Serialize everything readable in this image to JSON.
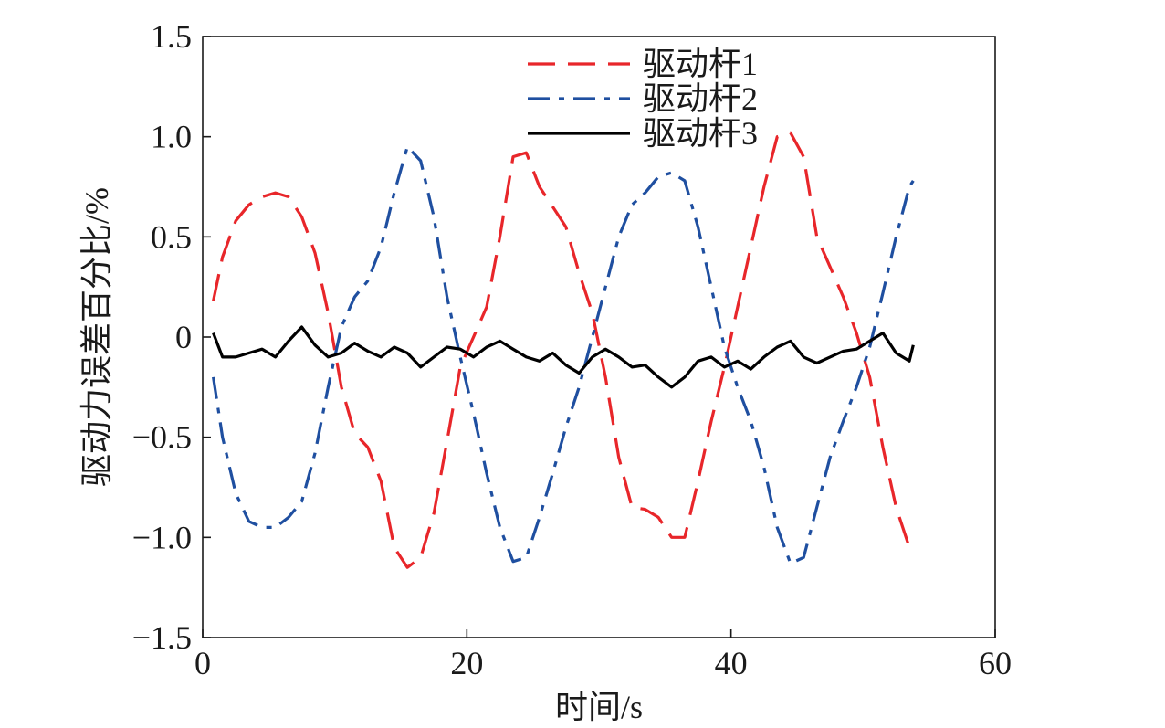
{
  "chart_data": {
    "type": "line",
    "title": "",
    "xlabel": "时间/s",
    "ylabel": "驱动力误差百分比/%",
    "xlim": [
      0,
      60
    ],
    "ylim": [
      -1.5,
      1.5
    ],
    "x_ticks": [
      0,
      20,
      40,
      60
    ],
    "x_tick_labels": [
      "0",
      "20",
      "40",
      "60"
    ],
    "y_ticks": [
      -1.5,
      -1.0,
      -0.5,
      0,
      0.5,
      1.0,
      1.5
    ],
    "y_tick_labels": [
      "−1.5",
      "−1.0",
      "−0.5",
      "0",
      "0.5",
      "1.0",
      "1.5"
    ],
    "grid": false,
    "legend_position": "top-center",
    "series": [
      {
        "name": "驱动杆1",
        "color": "#e8262a",
        "dash": "dashed",
        "x": [
          0.8,
          1.5,
          2.5,
          3.5,
          4.5,
          5.5,
          6.5,
          7.5,
          8.5,
          9.5,
          10.5,
          11.5,
          12.5,
          13.5,
          14.5,
          15.5,
          16.5,
          17.5,
          18.5,
          19.5,
          20.5,
          21.5,
          22.5,
          23.5,
          24.5,
          25.5,
          26.5,
          27.5,
          28.5,
          29.5,
          30.5,
          31.5,
          32.5,
          33.5,
          34.5,
          35.5,
          36.5,
          37.5,
          38.5,
          39.5,
          40.5,
          41.5,
          42.5,
          43.5,
          44.5,
          45.5,
          46.5,
          47.5,
          48.5,
          49.5,
          50.5,
          51.5,
          52.5,
          53.5,
          53.8
        ],
        "y": [
          0.18,
          0.4,
          0.58,
          0.66,
          0.7,
          0.72,
          0.7,
          0.6,
          0.42,
          0.12,
          -0.25,
          -0.48,
          -0.55,
          -0.72,
          -1.05,
          -1.15,
          -1.1,
          -0.88,
          -0.52,
          -0.15,
          0.0,
          0.15,
          0.5,
          0.9,
          0.92,
          0.75,
          0.65,
          0.55,
          0.32,
          0.12,
          -0.2,
          -0.6,
          -0.85,
          -0.86,
          -0.9,
          -1.0,
          -1.0,
          -0.72,
          -0.42,
          -0.15,
          0.15,
          0.45,
          0.75,
          1.0,
          1.02,
          0.9,
          0.5,
          0.35,
          0.2,
          0.02,
          -0.2,
          -0.55,
          -0.85,
          -1.05,
          -1.08
        ]
      },
      {
        "name": "驱动杆2",
        "color": "#1f4fa0",
        "dash": "dashdot",
        "x": [
          0.8,
          1.5,
          2.5,
          3.5,
          4.5,
          5.5,
          6.5,
          7.5,
          8.5,
          9.5,
          10.5,
          11.5,
          12.5,
          13.5,
          14.5,
          15.5,
          16.5,
          17.5,
          18.5,
          19.5,
          20.5,
          21.5,
          22.5,
          23.5,
          24.5,
          25.5,
          26.5,
          27.5,
          28.5,
          29.5,
          30.5,
          31.5,
          32.5,
          33.5,
          34.5,
          35.5,
          36.5,
          37.5,
          38.5,
          39.5,
          40.5,
          41.5,
          42.5,
          43.5,
          44.5,
          45.5,
          46.5,
          47.5,
          48.5,
          49.5,
          50.5,
          51.5,
          52.5,
          53.5,
          53.8
        ],
        "y": [
          -0.2,
          -0.5,
          -0.78,
          -0.92,
          -0.95,
          -0.95,
          -0.9,
          -0.82,
          -0.58,
          -0.25,
          0.05,
          0.2,
          0.28,
          0.45,
          0.72,
          0.95,
          0.88,
          0.6,
          0.2,
          -0.1,
          -0.38,
          -0.68,
          -0.95,
          -1.12,
          -1.1,
          -0.9,
          -0.68,
          -0.45,
          -0.25,
          0.0,
          0.25,
          0.5,
          0.66,
          0.72,
          0.8,
          0.82,
          0.78,
          0.55,
          0.25,
          -0.05,
          -0.25,
          -0.42,
          -0.65,
          -0.95,
          -1.13,
          -1.1,
          -0.85,
          -0.6,
          -0.42,
          -0.25,
          -0.05,
          0.22,
          0.5,
          0.75,
          0.78
        ]
      },
      {
        "name": "驱动杆3",
        "color": "#000000",
        "dash": "solid",
        "x": [
          0.8,
          1.5,
          2.5,
          3.5,
          4.5,
          5.5,
          6.5,
          7.5,
          8.5,
          9.5,
          10.5,
          11.5,
          12.5,
          13.5,
          14.5,
          15.5,
          16.5,
          17.5,
          18.5,
          19.5,
          20.5,
          21.5,
          22.5,
          23.5,
          24.5,
          25.5,
          26.5,
          27.5,
          28.5,
          29.5,
          30.5,
          31.5,
          32.5,
          33.5,
          34.5,
          35.5,
          36.5,
          37.5,
          38.5,
          39.5,
          40.5,
          41.5,
          42.5,
          43.5,
          44.5,
          45.5,
          46.5,
          47.5,
          48.5,
          49.5,
          50.5,
          51.5,
          52.5,
          53.5,
          53.8
        ],
        "y": [
          0.02,
          -0.1,
          -0.1,
          -0.08,
          -0.06,
          -0.1,
          -0.02,
          0.05,
          -0.04,
          -0.1,
          -0.08,
          -0.03,
          -0.07,
          -0.1,
          -0.05,
          -0.08,
          -0.15,
          -0.1,
          -0.05,
          -0.06,
          -0.1,
          -0.05,
          -0.02,
          -0.06,
          -0.1,
          -0.12,
          -0.08,
          -0.14,
          -0.18,
          -0.1,
          -0.06,
          -0.1,
          -0.15,
          -0.14,
          -0.2,
          -0.25,
          -0.2,
          -0.12,
          -0.1,
          -0.15,
          -0.12,
          -0.16,
          -0.1,
          -0.05,
          -0.02,
          -0.1,
          -0.13,
          -0.1,
          -0.07,
          -0.06,
          -0.02,
          0.02,
          -0.08,
          -0.12,
          -0.04
        ]
      }
    ]
  }
}
